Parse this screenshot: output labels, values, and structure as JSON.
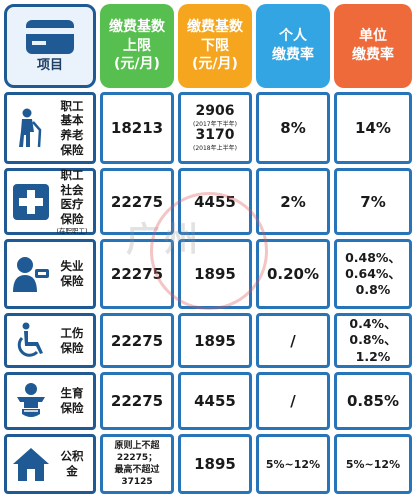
{
  "header": {
    "item": "项目",
    "upper": [
      "缴费基数",
      "上限",
      "(元/月)"
    ],
    "lower": [
      "缴费基数",
      "下限",
      "(元/月)"
    ],
    "personal": [
      "个人",
      "缴费率"
    ],
    "unit": [
      "单位",
      "缴费率"
    ]
  },
  "rows": [
    {
      "label": [
        "职工",
        "基本",
        "养老",
        "保险"
      ],
      "note": "",
      "icon": "elderly-person-icon",
      "upper": "18213",
      "lower": {
        "v1": "2906",
        "n1": "(2017年下半年)",
        "v2": "3170",
        "n2": "(2018年上半年)"
      },
      "personal": "8%",
      "unit": "14%"
    },
    {
      "label": [
        "职工",
        "社会",
        "医疗",
        "保险"
      ],
      "note": "(在职职工)",
      "icon": "medical-cross-icon",
      "upper": "22275",
      "lower": "4455",
      "personal": "2%",
      "unit": "7%"
    },
    {
      "label": [
        "失业",
        "保险"
      ],
      "note": "",
      "icon": "unemployed-person-icon",
      "upper": "22275",
      "lower": "1895",
      "personal": "0.20%",
      "unit": [
        "0.48%、",
        "0.64%、",
        "0.8%"
      ]
    },
    {
      "label": [
        "工伤",
        "保险"
      ],
      "note": "",
      "icon": "wheelchair-icon",
      "upper": "22275",
      "lower": "1895",
      "personal": "/",
      "unit": [
        "0.4%、",
        "0.8%、",
        "1.2%"
      ]
    },
    {
      "label": [
        "生育",
        "保险"
      ],
      "note": "",
      "icon": "baby-icon",
      "upper": "22275",
      "lower": "4455",
      "personal": "/",
      "unit": "0.85%"
    },
    {
      "label": [
        "公积",
        "金"
      ],
      "note": "",
      "icon": "house-icon",
      "upper": [
        "原则上不超",
        "22275；",
        "最高不超过",
        "37125"
      ],
      "lower": "1895",
      "personal": "5%~12%",
      "unit": "5%~12%"
    }
  ],
  "watermark": "广州",
  "colors": {
    "frame": "#1f5a94",
    "upper": "#57bf4f",
    "lower": "#f6a61e",
    "personal": "#33a5e2",
    "unit": "#ef6a3a"
  }
}
